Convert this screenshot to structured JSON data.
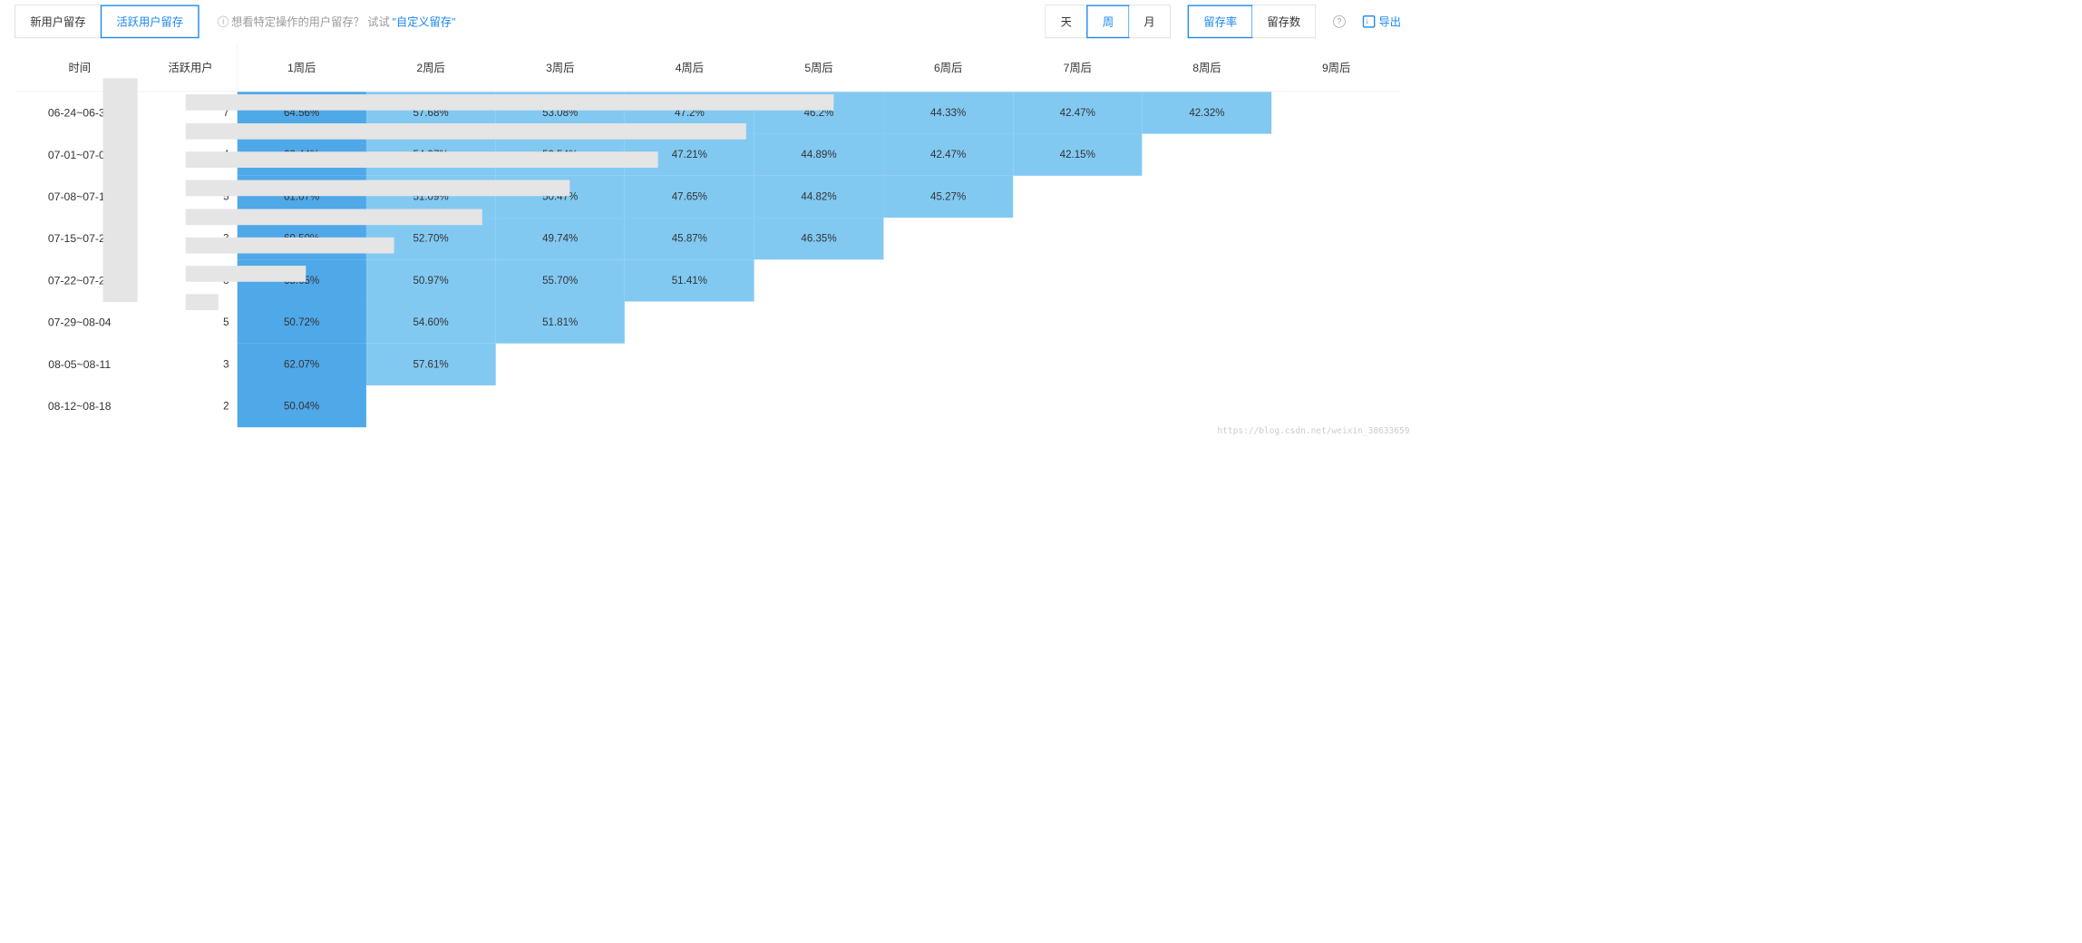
{
  "tabs": {
    "new_user": "新用户留存",
    "active_user": "活跃用户留存"
  },
  "hint": {
    "prefix": "想看特定操作的用户留存？ 试试",
    "link": "\"自定义留存\""
  },
  "granularity": {
    "day": "天",
    "week": "周",
    "month": "月"
  },
  "metric": {
    "rate": "留存率",
    "count": "留存数"
  },
  "export_label": "导出",
  "columns": {
    "period": "时间",
    "active": "活跃用户",
    "w1": "1周后",
    "w2": "2周后",
    "w3": "3周后",
    "w4": "4周后",
    "w5": "5周后",
    "w6": "6周后",
    "w7": "7周后",
    "w8": "8周后",
    "w9": "9周后"
  },
  "rows": [
    {
      "period": "06-24~06-30",
      "active": "7",
      "cells": [
        "64.56%",
        "57.68%",
        "53.08%",
        "47.2%",
        "46.2%",
        "44.33%",
        "42.47%",
        "42.32%",
        ""
      ],
      "filled": 8
    },
    {
      "period": "07-01~07-07",
      "active": "4",
      "cells": [
        "62.44%",
        "54.97%",
        "50.54%",
        "47.21%",
        "44.89%",
        "42.47%",
        "42.15%",
        "",
        ""
      ],
      "filled": 7
    },
    {
      "period": "07-08~07-14",
      "active": "5",
      "cells": [
        "61.07%",
        "51.09%",
        "50.47%",
        "47.65%",
        "44.82%",
        "45.27%",
        "",
        "",
        ""
      ],
      "filled": 6
    },
    {
      "period": "07-15~07-21",
      "active": "3",
      "cells": [
        "60.50%",
        "52.70%",
        "49.74%",
        "45.87%",
        "46.35%",
        "",
        "",
        "",
        ""
      ],
      "filled": 5
    },
    {
      "period": "07-22~07-28",
      "active": "8",
      "cells": [
        "65.05%",
        "50.97%",
        "55.70%",
        "51.41%",
        "",
        "",
        "",
        "",
        ""
      ],
      "filled": 4
    },
    {
      "period": "07-29~08-04",
      "active": "5",
      "cells": [
        "50.72%",
        "54.60%",
        "51.81%",
        "",
        "",
        "",
        "",
        "",
        ""
      ],
      "filled": 3
    },
    {
      "period": "08-05~08-11",
      "active": "3",
      "cells": [
        "62.07%",
        "57.61%",
        "",
        "",
        "",
        "",
        "",
        "",
        ""
      ],
      "filled": 2
    },
    {
      "period": "08-12~08-18",
      "active": "2",
      "cells": [
        "50.04%",
        "",
        "",
        "",
        "",
        "",
        "",
        "",
        ""
      ],
      "filled": 1
    }
  ],
  "colors": {
    "accent": "#1b87ef",
    "col1": "#4fa8e8",
    "colOther": "#82c9f2",
    "redact": "#e5e5e5"
  },
  "watermark": "https://blog.csdn.net/weixin_38633659"
}
